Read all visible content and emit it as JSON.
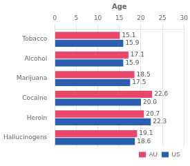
{
  "chart_data": {
    "type": "bar",
    "orientation": "horizontal",
    "xlabel": "Age",
    "categories": [
      "Tobacco",
      "Alcohol",
      "Marijuana",
      "Cocaine",
      "Heroin",
      "Hallucinogens"
    ],
    "series": [
      {
        "name": "AU",
        "color": "#E8476A",
        "values": [
          15.1,
          17.1,
          18.5,
          22.6,
          20.7,
          19.1
        ],
        "value_labels": [
          "15.1",
          "17.1",
          "18.5",
          "22.6",
          "20.7",
          "19.1"
        ]
      },
      {
        "name": "US",
        "color": "#2B5EAE",
        "values": [
          15.9,
          15.9,
          17.5,
          20.0,
          22.3,
          18.6
        ],
        "value_labels": [
          "15.9",
          "15.9",
          "17.5",
          "20.0",
          "22.3",
          "18.6"
        ]
      }
    ],
    "xlim": [
      0,
      30
    ],
    "xticks": [
      0,
      5,
      10,
      15,
      20,
      25,
      30
    ],
    "grid": true,
    "legend": "lower right",
    "data_labels": true
  }
}
